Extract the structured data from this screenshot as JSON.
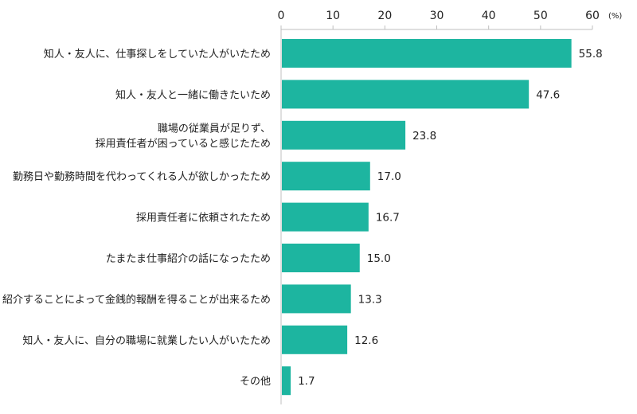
{
  "chart_data": {
    "type": "bar",
    "orientation": "horizontal",
    "categories": [
      [
        "知人・友人に、仕事探しをしていた人がいたため"
      ],
      [
        "知人・友人と一緒に働きたいため"
      ],
      [
        "職場の従業員が足りず、",
        "採用責任者が困っていると感じたため"
      ],
      [
        "勤務日や勤務時間を代わってくれる人が欲しかったため"
      ],
      [
        "採用責任者に依頼されたため"
      ],
      [
        "たまたま仕事紹介の話になったため"
      ],
      [
        "紹介することによって金銭的報酬を得ることが出来るため"
      ],
      [
        "知人・友人に、自分の職場に就業したい人がいたため"
      ],
      [
        "その他"
      ]
    ],
    "values": [
      55.8,
      47.6,
      23.8,
      17.0,
      16.7,
      15.0,
      13.3,
      12.6,
      1.7
    ],
    "value_labels": [
      "55.8",
      "47.6",
      "23.8",
      "17.0",
      "16.7",
      "15.0",
      "13.3",
      "12.6",
      "1.7"
    ],
    "xlim": [
      0,
      60
    ],
    "ticks": [
      0,
      10,
      20,
      30,
      40,
      50,
      60
    ],
    "tick_labels": [
      "0",
      "10",
      "20",
      "30",
      "40",
      "50",
      "60"
    ],
    "unit": "(%)",
    "axis_position": "top",
    "grid": false,
    "bar_color": "#1db5a0"
  }
}
